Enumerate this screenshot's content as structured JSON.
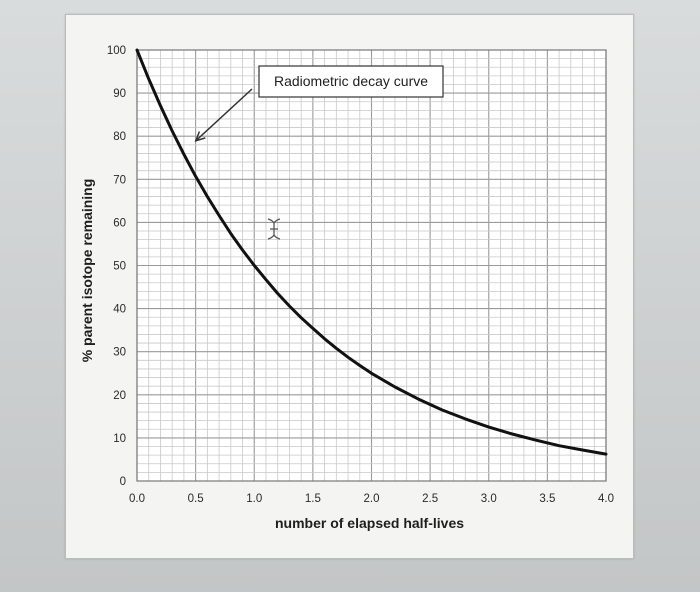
{
  "chart_data": {
    "type": "line",
    "title": "",
    "xlabel": "number of elapsed half-lives",
    "ylabel": "% parent isotope remaining",
    "xlim": [
      0,
      4.0
    ],
    "ylim": [
      0,
      100
    ],
    "x_ticks": [
      "0.0",
      "0.5",
      "1.0",
      "1.5",
      "2.0",
      "2.5",
      "3.0",
      "3.5",
      "4.0"
    ],
    "y_ticks": [
      "0",
      "10",
      "20",
      "30",
      "40",
      "50",
      "60",
      "70",
      "80",
      "90",
      "100"
    ],
    "grid": true,
    "series": [
      {
        "x": [
          0,
          0.1,
          0.2,
          0.3,
          0.4,
          0.5,
          0.6,
          0.7,
          0.8,
          0.9,
          1.0,
          1.1,
          1.2,
          1.3,
          1.4,
          1.5,
          1.6,
          1.7,
          1.8,
          1.9,
          2.0,
          2.2,
          2.4,
          2.6,
          2.8,
          3.0,
          3.2,
          3.4,
          3.6,
          3.8,
          4.0
        ],
        "y": [
          100,
          93.3,
          87.1,
          81.2,
          75.8,
          70.7,
          66.0,
          61.6,
          57.4,
          53.6,
          50.0,
          46.7,
          43.5,
          40.6,
          37.9,
          35.4,
          33.0,
          30.8,
          28.7,
          26.8,
          25.0,
          21.8,
          19.0,
          16.5,
          14.4,
          12.5,
          10.9,
          9.5,
          8.2,
          7.2,
          6.25
        ]
      }
    ],
    "annotations": [
      {
        "text": "Radiometric decay curve",
        "points_to": {
          "x": 0.45,
          "y": 78
        }
      }
    ]
  }
}
